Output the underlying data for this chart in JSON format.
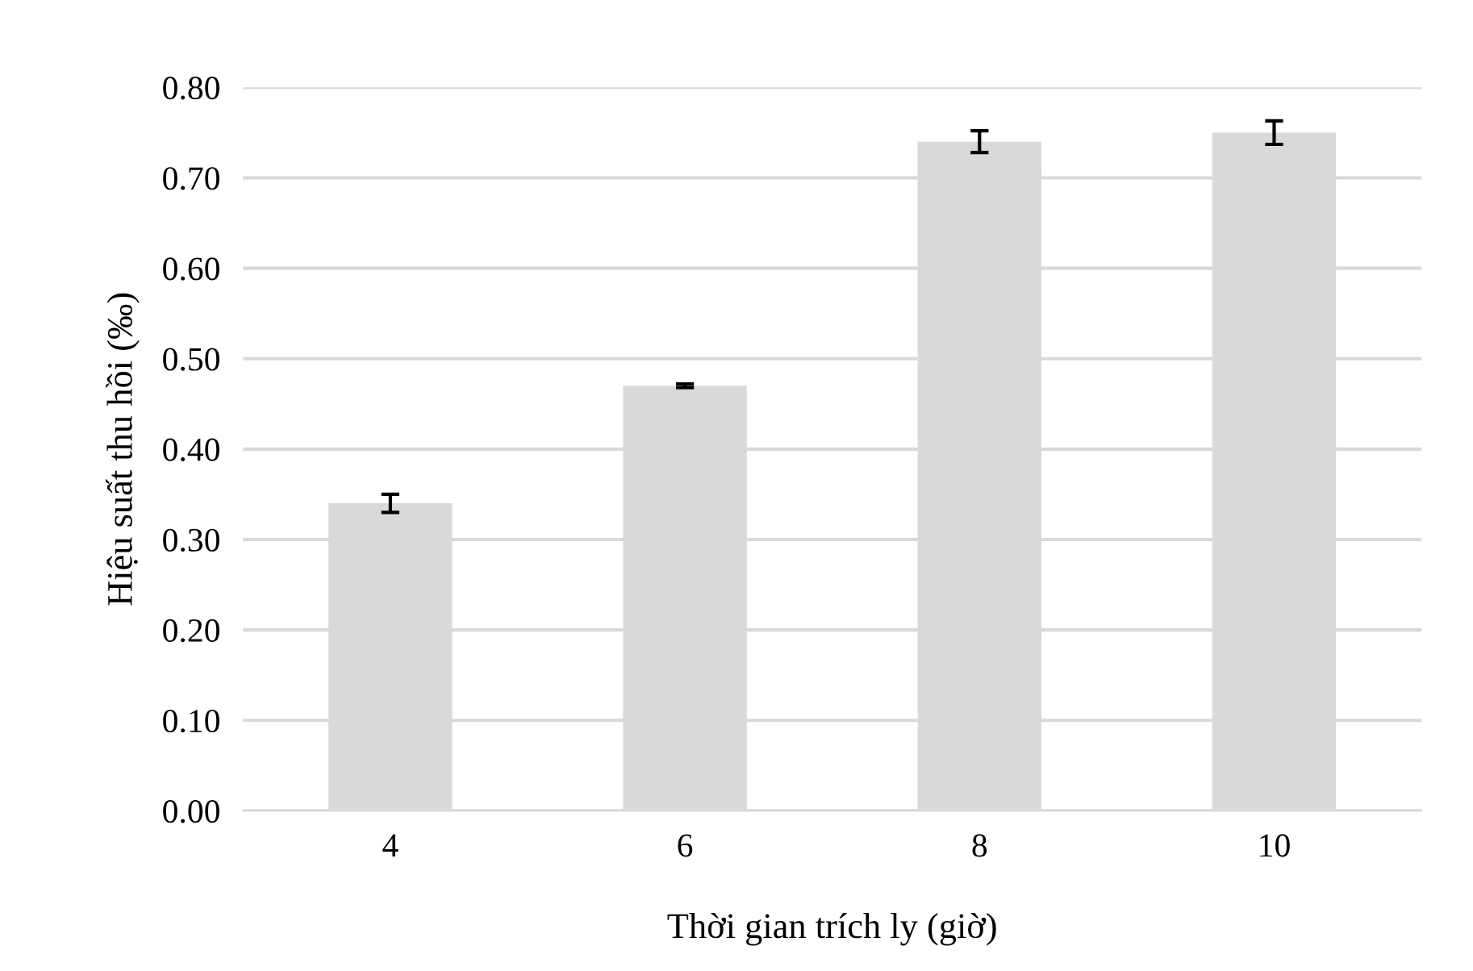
{
  "chart_data": {
    "type": "bar",
    "xlabel": "Thời gian trích ly (giờ)",
    "ylabel": "Hiệu suất thu hồi (‰)",
    "categories": [
      "4",
      "6",
      "8",
      "10"
    ],
    "values": [
      0.34,
      0.47,
      0.74,
      0.75
    ],
    "errors": [
      0.01,
      0.002,
      0.012,
      0.013
    ],
    "color": "#d9d9d9",
    "ylim": [
      0,
      0.8
    ],
    "yticks": [
      {
        "value": 0,
        "label": "0.00"
      },
      {
        "value": 0.1,
        "label": "0.10"
      },
      {
        "value": 0.2,
        "label": "0.20"
      },
      {
        "value": 0.3,
        "label": "0.30"
      },
      {
        "value": 0.4,
        "label": "0.40"
      },
      {
        "value": 0.5,
        "label": "0.50"
      },
      {
        "value": 0.6,
        "label": "0.60"
      },
      {
        "value": 0.7,
        "label": "0.70"
      },
      {
        "value": 0.8,
        "label": "0.80"
      }
    ],
    "grid": "y"
  }
}
